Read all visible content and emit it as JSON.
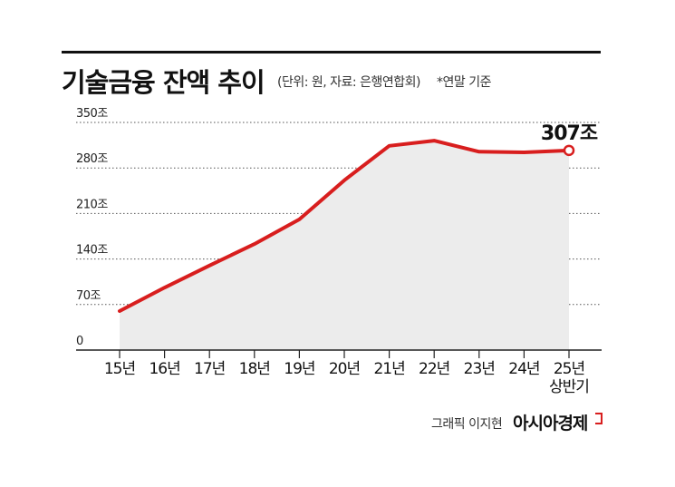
{
  "header": {
    "title": "기술금융 잔액 추이",
    "unit_source": "(단위: 원, 자료: 은행연합회)",
    "note": "*연말 기준"
  },
  "chart_data": {
    "type": "area",
    "title": "기술금융 잔액 추이",
    "unit": "원",
    "source": "은행연합회",
    "note": "*연말 기준",
    "categories": [
      "15년",
      "16년",
      "17년",
      "18년",
      "19년",
      "20년",
      "21년",
      "22년",
      "23년",
      "24년",
      "25년 상반기"
    ],
    "x_labels": [
      [
        "15년"
      ],
      [
        "16년"
      ],
      [
        "17년"
      ],
      [
        "18년"
      ],
      [
        "19년"
      ],
      [
        "20년"
      ],
      [
        "21년"
      ],
      [
        "22년"
      ],
      [
        "23년"
      ],
      [
        "24년"
      ],
      [
        "25년",
        "상반기"
      ]
    ],
    "series": [
      {
        "name": "기술금융 잔액",
        "values": [
          60,
          96,
          130,
          163,
          201,
          261,
          314,
          322,
          305,
          304,
          307
        ],
        "unit": "조"
      }
    ],
    "y_ticks": [
      0,
      70,
      140,
      210,
      280,
      350
    ],
    "y_tick_labels": [
      "0",
      "70조",
      "140조",
      "210조",
      "280조",
      "350조"
    ],
    "ylim": [
      0,
      350
    ],
    "last_value_label": "307조",
    "colors": {
      "line": "#d81e1e",
      "area": "#ececec",
      "grid": "#555555",
      "marker_fill": "#ffffff"
    }
  },
  "footer": {
    "credit": "그래픽 이지현",
    "brand": "아시아경제"
  }
}
